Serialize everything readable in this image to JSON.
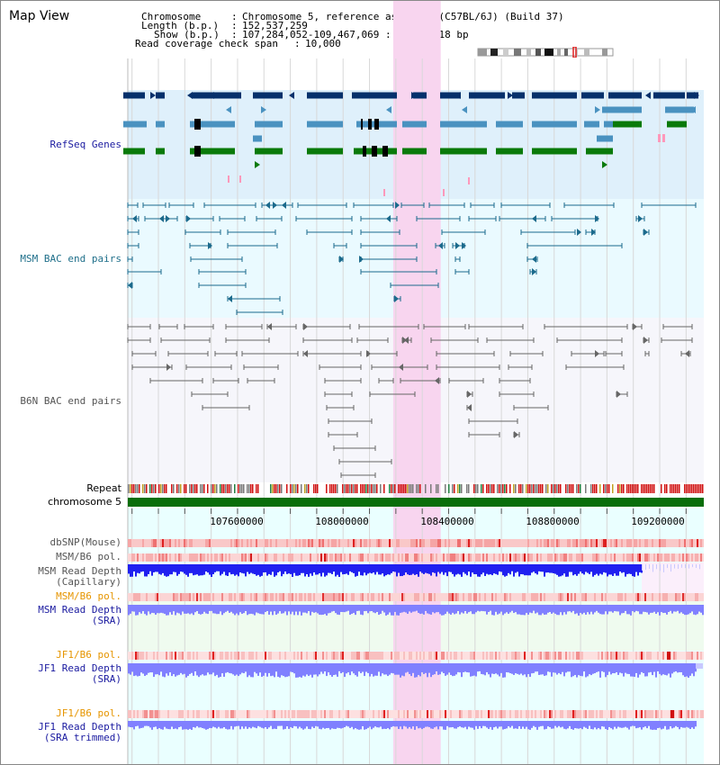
{
  "page": {
    "title": "Map View"
  },
  "header": {
    "chromosome_label": "Chromosome",
    "chromosome_value": "Chromosome 5, reference assembly (C57BL/6J) (Build 37)",
    "length_label": "Length (b.p.)",
    "length_value": "152,537,259",
    "show_label": "Show (b.p.)",
    "show_value": "107,284,052-109,467,069 : 2,183,018 bp",
    "span_label": "Read coverage check span",
    "span_value": "10,000"
  },
  "tracks": {
    "refseq": "RefSeq Genes",
    "msm_bac": "MSM BAC end pairs",
    "b6n_bac": "B6N BAC end pairs",
    "repeat": "Repeat",
    "chromosome": "chromosome 5",
    "dbsnp": "dbSNP(Mouse)",
    "msm_b6_pol_1": "MSM/B6 pol.",
    "msm_read_depth_cap_1": "MSM Read Depth",
    "msm_read_depth_cap_2": "(Capillary)",
    "msm_b6_pol_2": "MSM/B6 pol.",
    "msm_read_depth_sra_1": "MSM Read Depth",
    "msm_read_depth_sra_2": "(SRA)",
    "jf1_b6_pol_1": "JF1/B6 pol.",
    "jf1_read_depth_sra_1": "JF1 Read Depth",
    "jf1_read_depth_sra_2": "(SRA)",
    "jf1_b6_pol_2": "JF1/B6 pol.",
    "jf1_read_depth_trim_1": "JF1 Read Depth",
    "jf1_read_depth_trim_2": "(SRA trimmed)"
  },
  "axis": {
    "ticks": [
      "107600000",
      "108000000",
      "108400000",
      "108800000",
      "109200000"
    ],
    "range_bp": [
      107284052,
      109467069
    ]
  },
  "highlight_bp": [
    108290000,
    108470000
  ],
  "colors": {
    "refseq_dark": "#06306b",
    "refseq_mid": "#4a92c0",
    "refseq_green": "#0a7a0a",
    "refseq_pink": "#ff99bb",
    "bac_teal": "#1b6a8c",
    "bac_gray": "#666666",
    "highlight": "#f8d5ef",
    "chromosome_bar": "#0a6e0a",
    "depth_blue": "#2020f0",
    "depth_light": "#8080ff"
  }
}
